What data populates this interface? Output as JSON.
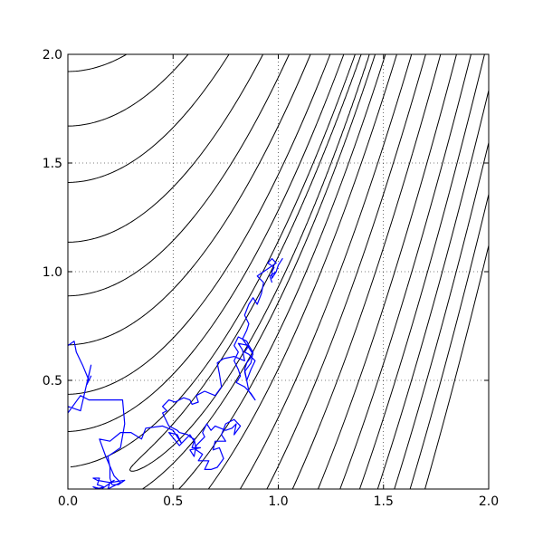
{
  "chart_data": {
    "type": "line",
    "title": "",
    "xlabel": "",
    "ylabel": "",
    "xlim": [
      0.0,
      2.0
    ],
    "ylim": [
      0.0,
      2.0
    ],
    "grid": true,
    "grid_style": "dotted",
    "xticks": [
      0.0,
      0.5,
      1.0,
      1.5,
      2.0
    ],
    "yticks": [
      0.5,
      1.0,
      1.5,
      2.0
    ],
    "xtick_labels": [
      "0.0",
      "0.5",
      "1.0",
      "1.5",
      "2.0"
    ],
    "ytick_labels": [
      "0.5",
      "1.0",
      "1.5",
      "2.0"
    ],
    "contour": {
      "function": "(1 - x)^2 + 100 * (y - x^2)^2",
      "levels": [
        0.5,
        2,
        8,
        20,
        45,
        80,
        130,
        200,
        280,
        370,
        470,
        580,
        700,
        830
      ],
      "color": "#000000"
    },
    "series": [
      {
        "color": "#0000ff",
        "points": [
          [
            0.0,
            0.66
          ],
          [
            0.03,
            0.68
          ],
          [
            0.04,
            0.63
          ],
          [
            0.07,
            0.57
          ],
          [
            0.1,
            0.5
          ],
          [
            0.11,
            0.52
          ],
          [
            0.09,
            0.48
          ],
          [
            0.11,
            0.57
          ],
          [
            0.06,
            0.36
          ],
          [
            0.0,
            0.38
          ],
          [
            0.0,
            0.35
          ],
          [
            0.06,
            0.43
          ],
          [
            0.1,
            0.41
          ],
          [
            0.2,
            0.41
          ],
          [
            0.26,
            0.41
          ],
          [
            0.27,
            0.3
          ],
          [
            0.25,
            0.19
          ],
          [
            0.19,
            0.15
          ],
          [
            0.2,
            0.1
          ],
          [
            0.2,
            0.05
          ],
          [
            0.21,
            0.02
          ],
          [
            0.24,
            0.02
          ],
          [
            0.27,
            0.04
          ],
          [
            0.2,
            0.03
          ],
          [
            0.14,
            0.04
          ],
          [
            0.12,
            0.05
          ],
          [
            0.15,
            0.05
          ],
          [
            0.14,
            0.02
          ],
          [
            0.17,
            0.01
          ],
          [
            0.14,
            0.0
          ],
          [
            0.12,
            0.01
          ],
          [
            0.16,
            0.0
          ],
          [
            0.19,
            0.02
          ],
          [
            0.22,
            0.04
          ],
          [
            0.2,
            0.03
          ],
          [
            0.19,
            0.0
          ],
          [
            0.23,
            0.02
          ],
          [
            0.25,
            0.03
          ],
          [
            0.22,
            0.06
          ],
          [
            0.18,
            0.15
          ],
          [
            0.15,
            0.23
          ],
          [
            0.2,
            0.22
          ],
          [
            0.25,
            0.26
          ],
          [
            0.3,
            0.26
          ],
          [
            0.35,
            0.23
          ],
          [
            0.37,
            0.28
          ],
          [
            0.45,
            0.29
          ],
          [
            0.5,
            0.27
          ],
          [
            0.54,
            0.21
          ],
          [
            0.52,
            0.25
          ],
          [
            0.48,
            0.26
          ],
          [
            0.53,
            0.2
          ],
          [
            0.56,
            0.23
          ],
          [
            0.58,
            0.25
          ],
          [
            0.6,
            0.22
          ],
          [
            0.59,
            0.19
          ],
          [
            0.63,
            0.19
          ],
          [
            0.58,
            0.18
          ],
          [
            0.6,
            0.15
          ],
          [
            0.61,
            0.2
          ],
          [
            0.62,
            0.21
          ],
          [
            0.65,
            0.24
          ],
          [
            0.64,
            0.26
          ],
          [
            0.66,
            0.3
          ],
          [
            0.68,
            0.27
          ],
          [
            0.7,
            0.29
          ],
          [
            0.75,
            0.27
          ],
          [
            0.78,
            0.28
          ],
          [
            0.8,
            0.3
          ],
          [
            0.79,
            0.25
          ],
          [
            0.82,
            0.29
          ],
          [
            0.79,
            0.32
          ],
          [
            0.75,
            0.3
          ],
          [
            0.73,
            0.25
          ],
          [
            0.75,
            0.22
          ],
          [
            0.7,
            0.22
          ],
          [
            0.69,
            0.18
          ],
          [
            0.72,
            0.19
          ],
          [
            0.74,
            0.14
          ],
          [
            0.71,
            0.1
          ],
          [
            0.68,
            0.09
          ],
          [
            0.65,
            0.09
          ],
          [
            0.67,
            0.13
          ],
          [
            0.62,
            0.13
          ],
          [
            0.64,
            0.16
          ],
          [
            0.61,
            0.18
          ],
          [
            0.6,
            0.23
          ],
          [
            0.58,
            0.24
          ],
          [
            0.57,
            0.25
          ],
          [
            0.53,
            0.26
          ],
          [
            0.52,
            0.27
          ],
          [
            0.48,
            0.29
          ],
          [
            0.47,
            0.31
          ],
          [
            0.45,
            0.35
          ],
          [
            0.47,
            0.36
          ],
          [
            0.45,
            0.38
          ],
          [
            0.48,
            0.41
          ],
          [
            0.51,
            0.4
          ],
          [
            0.55,
            0.42
          ],
          [
            0.58,
            0.41
          ],
          [
            0.59,
            0.39
          ],
          [
            0.62,
            0.4
          ],
          [
            0.61,
            0.43
          ],
          [
            0.65,
            0.45
          ],
          [
            0.7,
            0.43
          ],
          [
            0.73,
            0.47
          ],
          [
            0.72,
            0.53
          ],
          [
            0.71,
            0.58
          ],
          [
            0.74,
            0.6
          ],
          [
            0.79,
            0.61
          ],
          [
            0.84,
            0.59
          ],
          [
            0.83,
            0.64
          ],
          [
            0.81,
            0.67
          ],
          [
            0.86,
            0.66
          ],
          [
            0.88,
            0.63
          ],
          [
            0.87,
            0.58
          ],
          [
            0.84,
            0.54
          ],
          [
            0.85,
            0.5
          ],
          [
            0.87,
            0.55
          ],
          [
            0.89,
            0.59
          ],
          [
            0.86,
            0.62
          ],
          [
            0.84,
            0.63
          ],
          [
            0.86,
            0.66
          ],
          [
            0.85,
            0.68
          ],
          [
            0.81,
            0.7
          ],
          [
            0.79,
            0.66
          ],
          [
            0.81,
            0.63
          ],
          [
            0.79,
            0.59
          ],
          [
            0.81,
            0.55
          ],
          [
            0.82,
            0.52
          ],
          [
            0.8,
            0.49
          ],
          [
            0.84,
            0.47
          ],
          [
            0.87,
            0.44
          ],
          [
            0.89,
            0.41
          ],
          [
            0.86,
            0.45
          ],
          [
            0.85,
            0.5
          ],
          [
            0.84,
            0.55
          ],
          [
            0.85,
            0.58
          ],
          [
            0.88,
            0.62
          ],
          [
            0.86,
            0.65
          ],
          [
            0.83,
            0.69
          ],
          [
            0.85,
            0.73
          ],
          [
            0.86,
            0.76
          ],
          [
            0.84,
            0.8
          ],
          [
            0.86,
            0.85
          ],
          [
            0.88,
            0.88
          ],
          [
            0.9,
            0.85
          ],
          [
            0.92,
            0.9
          ],
          [
            0.93,
            0.95
          ],
          [
            0.9,
            0.98
          ],
          [
            0.93,
            1.0
          ],
          [
            0.96,
            1.02
          ],
          [
            0.99,
            1.04
          ],
          [
            0.97,
            1.06
          ],
          [
            0.95,
            1.04
          ],
          [
            0.98,
            1.02
          ],
          [
            0.97,
            1.0
          ],
          [
            0.97,
            0.97
          ],
          [
            0.99,
            1.0
          ],
          [
            1.0,
            1.03
          ],
          [
            1.02,
            1.06
          ],
          [
            1.0,
            1.03
          ],
          [
            0.99,
            1.0
          ],
          [
            0.96,
            0.98
          ],
          [
            0.97,
            0.95
          ]
        ]
      }
    ]
  }
}
